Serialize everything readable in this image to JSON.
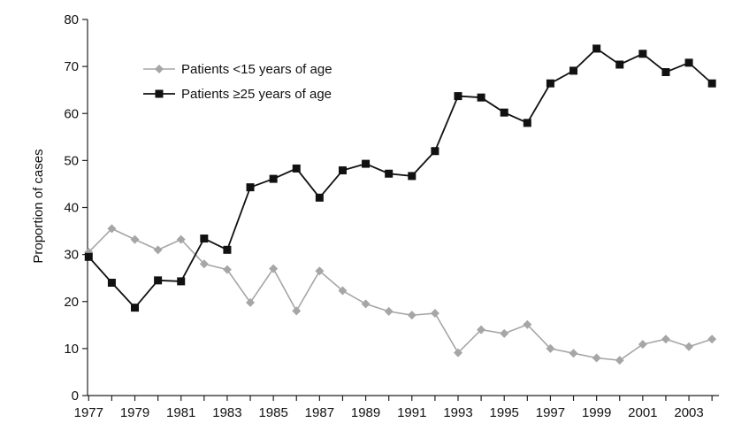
{
  "chart_data": {
    "type": "line",
    "title": "",
    "xlabel": "",
    "ylabel": "Proportion of cases",
    "x": [
      1977,
      1978,
      1979,
      1980,
      1981,
      1982,
      1983,
      1984,
      1985,
      1986,
      1987,
      1988,
      1989,
      1990,
      1991,
      1992,
      1993,
      1994,
      1995,
      1996,
      1997,
      1998,
      1999,
      2000,
      2001,
      2002,
      2003,
      2004
    ],
    "x_tick_labels": [
      "1977",
      "1979",
      "1981",
      "1983",
      "1985",
      "1987",
      "1989",
      "1991",
      "1993",
      "1995",
      "1997",
      "1999",
      "2001",
      "2003"
    ],
    "x_tick_values": [
      1977,
      1979,
      1981,
      1983,
      1985,
      1987,
      1989,
      1991,
      1993,
      1995,
      1997,
      1999,
      2001,
      2003
    ],
    "y_tick_values": [
      0,
      10,
      20,
      30,
      40,
      50,
      60,
      70,
      80
    ],
    "y_tick_labels": [
      "0",
      "10",
      "20",
      "30",
      "40",
      "50",
      "60",
      "70",
      "80"
    ],
    "ylim": [
      0,
      80
    ],
    "xlim": [
      1977,
      2004
    ],
    "grid": false,
    "legend_position": "top-left",
    "series": [
      {
        "name": "Patients <15 years of age",
        "color": "#a6a6a6",
        "marker": "diamond",
        "values": [
          30.5,
          35.5,
          33.2,
          31.0,
          33.2,
          28.0,
          26.8,
          19.8,
          27.0,
          18.0,
          26.5,
          22.3,
          19.5,
          17.9,
          17.1,
          17.5,
          9.1,
          14.0,
          13.2,
          15.1,
          10.0,
          9.0,
          8.0,
          7.5,
          10.9,
          12.0,
          10.4,
          12.0
        ]
      },
      {
        "name": "Patients ≥25 years of age",
        "color": "#111111",
        "marker": "square",
        "values": [
          29.5,
          24.0,
          18.7,
          24.5,
          24.3,
          33.4,
          31.0,
          44.3,
          46.1,
          48.3,
          42.1,
          47.9,
          49.3,
          47.2,
          46.7,
          52.0,
          63.7,
          63.4,
          60.2,
          58.0,
          66.4,
          69.1,
          73.8,
          70.4,
          72.7,
          68.8,
          70.8,
          66.4
        ]
      }
    ]
  }
}
